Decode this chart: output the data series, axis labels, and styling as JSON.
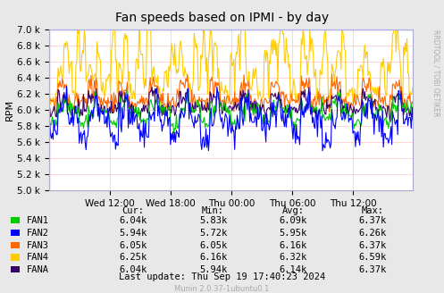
{
  "title": "Fan speeds based on IPMI - by day",
  "ylabel": "RPM",
  "ylim": [
    5000,
    7000
  ],
  "yticks": [
    5000,
    5200,
    5400,
    5600,
    5800,
    6000,
    6200,
    6400,
    6600,
    6800,
    7000
  ],
  "xtick_labels": [
    "Wed 12:00",
    "Wed 18:00",
    "Thu 00:00",
    "Thu 06:00",
    "Thu 12:00"
  ],
  "bg_color": "#e8e8e8",
  "plot_bg_color": "#ffffff",
  "grid_color": "#ff9999",
  "fans": [
    "FAN1",
    "FAN2",
    "FAN3",
    "FAN4",
    "FANA"
  ],
  "fan_colors": [
    "#00cc00",
    "#0000ff",
    "#ff6600",
    "#ffcc00",
    "#330066"
  ],
  "stats": {
    "Cur": [
      "6.04k",
      "5.94k",
      "6.05k",
      "6.25k",
      "6.04k"
    ],
    "Min": [
      "5.83k",
      "5.72k",
      "6.05k",
      "6.16k",
      "5.94k"
    ],
    "Avg": [
      "6.09k",
      "5.95k",
      "6.16k",
      "6.32k",
      "6.14k"
    ],
    "Max": [
      "6.37k",
      "6.26k",
      "6.37k",
      "6.59k",
      "6.37k"
    ]
  },
  "last_update": "Last update: Thu Sep 19 17:40:23 2024",
  "munin_credit": "Munin 2.0.37-1ubuntu0.1",
  "rrdtool_credit": "RRDTOOL / TOBI OETIKER"
}
